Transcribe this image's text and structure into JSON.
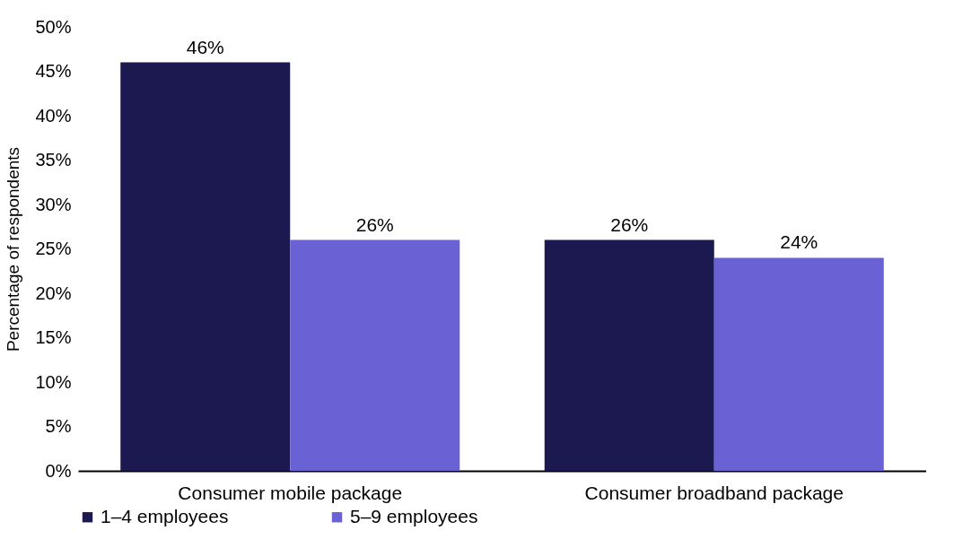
{
  "chart_data": {
    "type": "bar",
    "ylabel": "Percentage of respondents",
    "categories": [
      "Consumer mobile package",
      "Consumer broadband package"
    ],
    "series": [
      {
        "name": "1–4 employees",
        "color": "#1c1850",
        "values": [
          46,
          26
        ],
        "value_labels": [
          "46%",
          "26%"
        ]
      },
      {
        "name": "5–9 employees",
        "color": "#6a62d4",
        "values": [
          26,
          24
        ],
        "value_labels": [
          "26%",
          "24%"
        ]
      }
    ],
    "ylim": [
      0,
      50
    ],
    "yticks": [
      {
        "value": 0,
        "label": "0%"
      },
      {
        "value": 5,
        "label": "5%"
      },
      {
        "value": 10,
        "label": "10%"
      },
      {
        "value": 15,
        "label": "15%"
      },
      {
        "value": 20,
        "label": "20%"
      },
      {
        "value": 25,
        "label": "25%"
      },
      {
        "value": 30,
        "label": "30%"
      },
      {
        "value": 35,
        "label": "35%"
      },
      {
        "value": 40,
        "label": "40%"
      },
      {
        "value": 45,
        "label": "45%"
      },
      {
        "value": 50,
        "label": "50%"
      }
    ],
    "grid": false,
    "legend": "bottom"
  }
}
